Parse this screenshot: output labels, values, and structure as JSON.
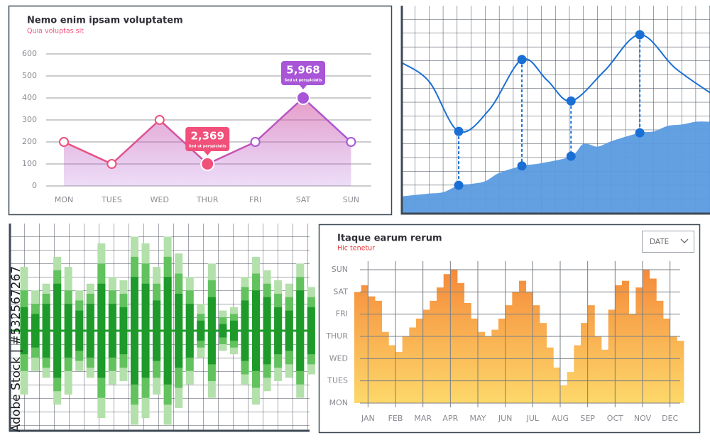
{
  "watermark": "Adobe Stock | #532567267",
  "chart_data": [
    {
      "type": "area",
      "title": "Nemo enim ipsam voluptatem",
      "subtitle": "Quia voluptas sit",
      "categories": [
        "MON",
        "TUES",
        "WED",
        "THUR",
        "FRI",
        "SAT",
        "SUN"
      ],
      "values": [
        200,
        100,
        300,
        100,
        200,
        400,
        200
      ],
      "point_colors": [
        "#f0507a",
        "#f0507a",
        "#f0507a",
        "#f0507a",
        "#a855d8",
        "#a855d8",
        "#a855d8"
      ],
      "color": [
        "#f0507a",
        "#a855d8"
      ],
      "ylim": [
        0,
        600
      ],
      "yticks": [
        0,
        100,
        200,
        300,
        400,
        500,
        600
      ],
      "grid": true,
      "annotations": [
        {
          "category": "THUR",
          "label": "2,369",
          "text": "Sed ut perspiciatis",
          "color": "#f0507a"
        },
        {
          "category": "SAT",
          "label": "5,968",
          "text": "Sed ut perspiciatis",
          "color": "#a855d8"
        }
      ]
    },
    {
      "type": "line",
      "xlim": [
        0,
        22
      ],
      "ylim": [
        0,
        15
      ],
      "dashed_drops": true,
      "series": [
        {
          "kind": "area",
          "color": "#5b9be0",
          "x": [
            0,
            1,
            2,
            3,
            4.1,
            5,
            6,
            7,
            8.6,
            10,
            12.1,
            13,
            14,
            15,
            17,
            18,
            19,
            20,
            21,
            22
          ],
          "values": [
            1.2,
            1.3,
            1.4,
            1.5,
            2.0,
            2.1,
            2.3,
            2.9,
            3.4,
            3.6,
            4.1,
            5.0,
            4.8,
            5.2,
            5.8,
            5.9,
            6.3,
            6.4,
            6.6,
            6.6
          ]
        },
        {
          "kind": "curve",
          "color": "#1a6fd4",
          "x": [
            0,
            2,
            4.1,
            6.3,
            8.6,
            10.4,
            12.1,
            14.5,
            17,
            19.5,
            22
          ],
          "values": [
            10.9,
            9.5,
            5.9,
            7.5,
            11.1,
            9.6,
            8.1,
            10.3,
            12.9,
            10.5,
            8.7
          ]
        },
        {
          "kind": "points",
          "color": "#1a6fd4",
          "x": [
            4.1,
            8.6,
            12.1,
            17
          ],
          "values": [
            2.0,
            3.4,
            4.1,
            5.8
          ]
        },
        {
          "kind": "points",
          "color": "#1a6fd4",
          "x": [
            4.1,
            8.6,
            12.1,
            17
          ],
          "values": [
            5.9,
            11.1,
            8.1,
            12.9
          ]
        }
      ]
    },
    {
      "type": "bar",
      "symmetric": true,
      "ylim": [
        -150,
        150
      ],
      "categories": [
        null,
        null,
        null,
        null,
        null,
        null,
        null,
        null,
        null,
        null,
        null,
        null,
        null,
        null,
        null,
        null,
        null,
        null,
        null,
        null,
        null,
        null,
        null,
        null,
        null,
        null,
        null
      ],
      "series": [
        {
          "color": "#b3e0ab",
          "values": [
            95,
            60,
            70,
            110,
            95,
            60,
            70,
            130,
            80,
            75,
            140,
            130,
            95,
            140,
            115,
            80,
            40,
            100,
            30,
            35,
            80,
            110,
            90,
            75,
            70,
            100,
            65
          ]
        },
        {
          "color": "#62c25e",
          "values": [
            60,
            40,
            55,
            90,
            60,
            45,
            55,
            100,
            60,
            55,
            110,
            100,
            70,
            110,
            85,
            60,
            25,
            75,
            20,
            25,
            65,
            85,
            70,
            55,
            50,
            80,
            50
          ]
        },
        {
          "color": "#1e9a2a",
          "values": [
            35,
            25,
            40,
            70,
            40,
            30,
            40,
            70,
            40,
            35,
            80,
            70,
            45,
            80,
            55,
            40,
            15,
            50,
            10,
            15,
            45,
            60,
            50,
            35,
            30,
            60,
            35
          ]
        }
      ]
    },
    {
      "type": "histogram",
      "title": "Itaque earum rerum",
      "subtitle": "Hic tenetur",
      "control": "DATE",
      "color": [
        "#f58a3a",
        "#fdd86a"
      ],
      "xlim": [
        0,
        12
      ],
      "ylim": [
        0,
        6
      ],
      "bins": [
        0,
        0.25,
        0.5,
        0.75,
        1,
        1.25,
        1.5,
        1.75,
        2,
        2.25,
        2.5,
        2.75,
        3,
        3.25,
        3.5,
        3.75,
        4,
        4.25,
        4.5,
        4.75,
        5,
        5.25,
        5.5,
        5.75,
        6,
        6.25,
        6.5,
        6.75,
        7,
        7.25,
        7.5,
        7.75,
        8,
        8.25,
        8.5,
        8.75,
        9,
        9.25,
        9.5,
        9.75,
        10,
        10.25,
        10.5,
        10.75,
        11,
        11.25,
        11.5,
        11.75,
        12
      ],
      "values": [
        5.0,
        5.3,
        4.8,
        4.6,
        3.2,
        2.6,
        2.3,
        3.0,
        3.4,
        3.8,
        4.2,
        4.6,
        5.2,
        5.8,
        6.0,
        5.4,
        4.5,
        3.8,
        3.2,
        3.0,
        3.3,
        3.8,
        4.4,
        5.0,
        5.5,
        5.0,
        4.4,
        3.6,
        2.5,
        1.6,
        0.8,
        1.4,
        2.6,
        3.6,
        4.4,
        3.0,
        2.4,
        4.2,
        5.3,
        5.5,
        4.0,
        5.2,
        6.0,
        5.6,
        4.6,
        3.8,
        3.0,
        2.8
      ],
      "xticks": [
        {
          "value": 0.5,
          "label": "JAN"
        },
        {
          "value": 1.5,
          "label": "FEB"
        },
        {
          "value": 2.5,
          "label": "MAR"
        },
        {
          "value": 3.5,
          "label": "APR"
        },
        {
          "value": 4.5,
          "label": "MAY"
        },
        {
          "value": 5.5,
          "label": "JUN"
        },
        {
          "value": 6.5,
          "label": "JUL"
        },
        {
          "value": 7.5,
          "label": "AUG"
        },
        {
          "value": 8.5,
          "label": "SEP"
        },
        {
          "value": 9.5,
          "label": "OCT"
        },
        {
          "value": 10.5,
          "label": "NOV"
        },
        {
          "value": 11.5,
          "label": "DEC"
        }
      ],
      "yticks": [
        {
          "value": 0,
          "label": "MON"
        },
        {
          "value": 1,
          "label": "TUES"
        },
        {
          "value": 2,
          "label": "WED"
        },
        {
          "value": 3,
          "label": "THUR"
        },
        {
          "value": 4,
          "label": "FRI"
        },
        {
          "value": 5,
          "label": "SAT"
        },
        {
          "value": 6,
          "label": "SUN"
        }
      ],
      "grid": true
    }
  ]
}
